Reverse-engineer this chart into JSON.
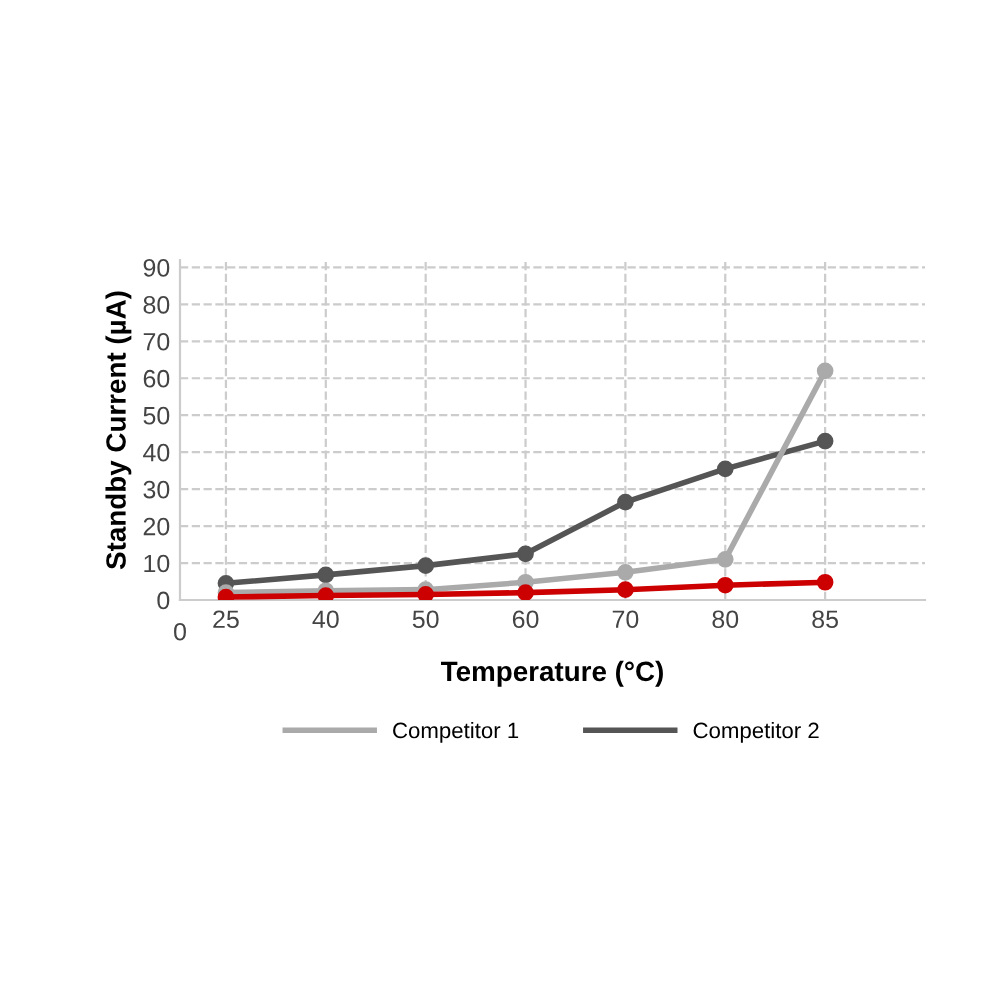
{
  "chart_data": {
    "type": "line",
    "xlabel": "Temperature (°C)",
    "ylabel": "Standby Current (µA)",
    "categories": [
      "25",
      "40",
      "50",
      "60",
      "70",
      "80",
      "85"
    ],
    "series": [
      {
        "color": "#cc0000",
        "values": [
          0.8,
          1.2,
          1.5,
          2,
          2.8,
          4,
          4.8
        ]
      },
      {
        "name": "Competitor 1",
        "color": "#aaaaaa",
        "values": [
          2,
          2.5,
          2.8,
          4.8,
          7.5,
          11,
          62
        ]
      },
      {
        "name": "Competitor 2",
        "color": "#555555",
        "values": [
          4.5,
          6.8,
          9.3,
          12.5,
          26.5,
          35.5,
          43
        ]
      }
    ],
    "ylim": [
      0,
      92
    ],
    "yticks": [
      0,
      10,
      20,
      30,
      40,
      50,
      60,
      70,
      80,
      90
    ],
    "annotations": [
      "0"
    ],
    "grid": true,
    "legend": "bottom",
    "marker": "circle",
    "line_style": "solid"
  }
}
